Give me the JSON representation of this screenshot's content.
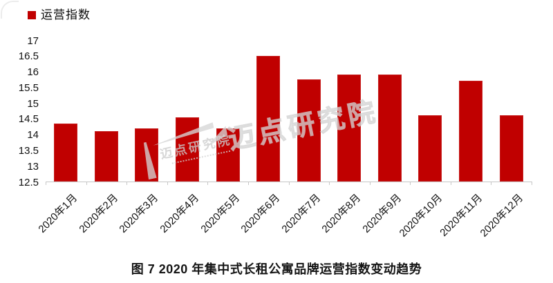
{
  "legend": {
    "label": "运营指数",
    "swatch_color": "#c00000"
  },
  "watermark": {
    "text": "迈点研究院"
  },
  "caption": "图 7 2020 年集中式长租公寓品牌运营指数变动趋势",
  "colors": {
    "bar": "#c00000",
    "axis_line": "#c6c6c6",
    "text": "#000000",
    "watermark": "#d4d4d4"
  },
  "chart_data": {
    "type": "bar",
    "title": "图 7 2020 年集中式长租公寓品牌运营指数变动趋势",
    "xlabel": "",
    "ylabel": "",
    "categories": [
      "2020年1月",
      "2020年2月",
      "2020年3月",
      "2020年4月",
      "2020年5月",
      "2020年6月",
      "2020年7月",
      "2020年8月",
      "2020年9月",
      "2020年10月",
      "2020年11月",
      "2020年12月"
    ],
    "series": [
      {
        "name": "运营指数",
        "values": [
          14.35,
          14.1,
          14.2,
          14.55,
          14.2,
          16.5,
          15.75,
          15.9,
          15.9,
          14.6,
          15.7,
          14.6
        ]
      }
    ],
    "ylim": [
      12.5,
      17
    ],
    "ytick_step": 0.5,
    "grid": false,
    "legend_position": "top-left",
    "bar_color": "#c00000"
  }
}
